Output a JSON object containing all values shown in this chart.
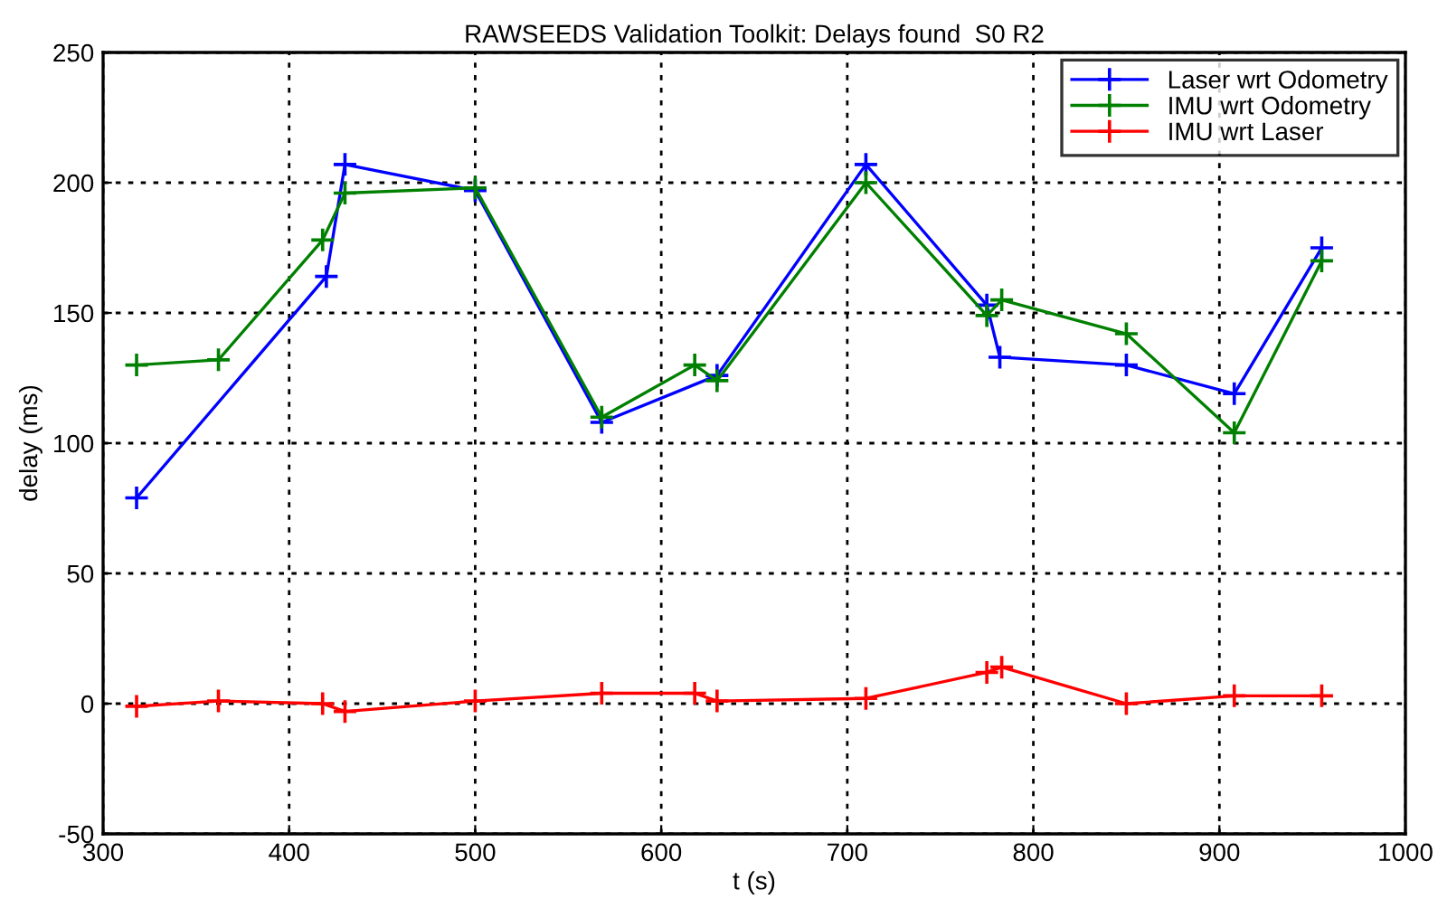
{
  "chart_data": {
    "type": "line",
    "title": "RAWSEEDS Validation Toolkit: Delays found  S0 R2",
    "xlabel": "t (s)",
    "ylabel": "delay (ms)",
    "xlim": [
      300,
      1000
    ],
    "xticks": [
      300,
      400,
      500,
      600,
      700,
      800,
      900,
      1000
    ],
    "ylim": [
      -50,
      250
    ],
    "yticks": [
      -50,
      0,
      50,
      100,
      150,
      200,
      250
    ],
    "grid": true,
    "legend": "top right",
    "marker": "cross",
    "line_style": "solid",
    "series": [
      {
        "name": "Laser wrt Odometry",
        "color": "#0000ff",
        "x": [
          318,
          420,
          430,
          500,
          568,
          630,
          710,
          775,
          782,
          850,
          908,
          955
        ],
        "values": [
          79,
          164,
          207,
          197,
          108,
          126,
          207,
          153,
          133,
          130,
          119,
          175
        ]
      },
      {
        "name": "IMU wrt Odometry",
        "color": "#008000",
        "x": [
          318,
          362,
          418,
          430,
          500,
          568,
          618,
          630,
          710,
          775,
          783,
          850,
          908,
          955
        ],
        "values": [
          130,
          132,
          178,
          196,
          198,
          110,
          130,
          124,
          200,
          149,
          155,
          142,
          104,
          170
        ]
      },
      {
        "name": "IMU wrt Laser",
        "color": "#ff0000",
        "x": [
          318,
          362,
          418,
          430,
          500,
          568,
          618,
          630,
          710,
          775,
          783,
          850,
          908,
          955
        ],
        "values": [
          -1,
          1,
          0,
          -3,
          1,
          4,
          4,
          1,
          2,
          12,
          14,
          0,
          3,
          3
        ]
      }
    ]
  }
}
